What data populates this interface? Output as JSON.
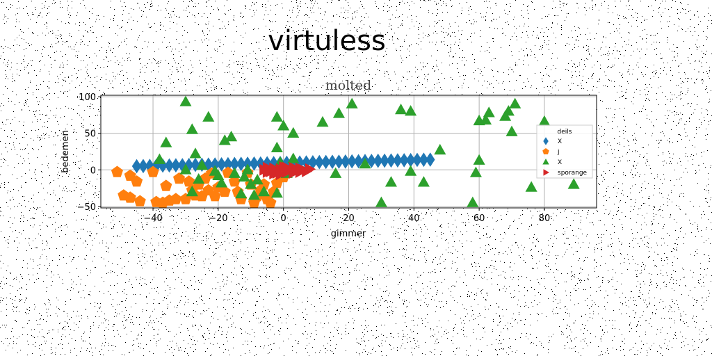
{
  "page_title": "virtuless",
  "chart_data": {
    "type": "scatter",
    "title": "molted",
    "xlabel": "gimmer",
    "ylabel": "bedemen",
    "xlim": [
      -56,
      96
    ],
    "ylim": [
      -52,
      102
    ],
    "xticks": [
      -40,
      -20,
      0,
      20,
      40,
      60,
      80
    ],
    "yticks": [
      -50,
      0,
      50,
      100
    ],
    "grid": true,
    "legend": {
      "title": "deils",
      "placement": "right"
    },
    "series": [
      {
        "name": "X",
        "color": "#1f77b4",
        "marker": "diamond",
        "points": [
          [
            -45,
            5
          ],
          [
            -43,
            5.2
          ],
          [
            -41,
            5.4
          ],
          [
            -39,
            5.6
          ],
          [
            -37,
            5.8
          ],
          [
            -35,
            6
          ],
          [
            -33,
            6.2
          ],
          [
            -31,
            6.4
          ],
          [
            -29,
            6.6
          ],
          [
            -27,
            6.8
          ],
          [
            -25,
            7
          ],
          [
            -23,
            7.2
          ],
          [
            -21,
            7.4
          ],
          [
            -19,
            7.6
          ],
          [
            -17,
            7.8
          ],
          [
            -15,
            8
          ],
          [
            -13,
            8.2
          ],
          [
            -11,
            8.4
          ],
          [
            -9,
            8.6
          ],
          [
            -7,
            8.8
          ],
          [
            -5,
            9
          ],
          [
            -3,
            9.2
          ],
          [
            -1,
            9.4
          ],
          [
            1,
            9.6
          ],
          [
            3,
            9.8
          ],
          [
            5,
            10
          ],
          [
            7,
            10.2
          ],
          [
            9,
            10.4
          ],
          [
            11,
            10.6
          ],
          [
            13,
            10.8
          ],
          [
            15,
            11
          ],
          [
            17,
            11.2
          ],
          [
            19,
            11.4
          ],
          [
            21,
            11.6
          ],
          [
            23,
            11.8
          ],
          [
            25,
            12
          ],
          [
            27,
            12.2
          ],
          [
            29,
            12.4
          ],
          [
            31,
            12.6
          ],
          [
            33,
            12.8
          ],
          [
            35,
            13
          ],
          [
            37,
            13.2
          ],
          [
            39,
            13.4
          ],
          [
            41,
            13.6
          ],
          [
            43,
            13.8
          ],
          [
            45,
            14
          ]
        ]
      },
      {
        "name": "j",
        "color": "#ff7f0e",
        "marker": "pentagon",
        "points": [
          [
            -51,
            -3
          ],
          [
            -47,
            -8
          ],
          [
            -45,
            -16
          ],
          [
            -49,
            -35
          ],
          [
            -47,
            -38
          ],
          [
            -44,
            -43
          ],
          [
            -40,
            -3
          ],
          [
            -39,
            -44
          ],
          [
            -37,
            -45
          ],
          [
            -36,
            -22
          ],
          [
            -35,
            -42
          ],
          [
            -33,
            -40
          ],
          [
            -32,
            -12
          ],
          [
            -30,
            -40
          ],
          [
            -28,
            -28
          ],
          [
            -29,
            -16
          ],
          [
            -27,
            -35
          ],
          [
            -26,
            -20
          ],
          [
            -25,
            -36
          ],
          [
            -24,
            -12
          ],
          [
            -23,
            -28
          ],
          [
            -22,
            -5
          ],
          [
            -21,
            -36
          ],
          [
            -20,
            -24
          ],
          [
            -18,
            -30
          ],
          [
            -17,
            -4
          ],
          [
            -15,
            -16
          ],
          [
            -14,
            -30
          ],
          [
            -13,
            -40
          ],
          [
            -11,
            -4
          ],
          [
            -10,
            -20
          ],
          [
            -9,
            -45
          ],
          [
            -8,
            -36
          ],
          [
            -7,
            -28
          ],
          [
            -6,
            -20
          ],
          [
            -5,
            -40
          ],
          [
            -4,
            -45
          ],
          [
            -3,
            -30
          ],
          [
            -2,
            -18
          ],
          [
            -1,
            -5
          ],
          [
            0,
            -10
          ]
        ]
      },
      {
        "name": "X",
        "color": "#2ca02c",
        "marker": "triangle",
        "points": [
          [
            -30,
            93
          ],
          [
            -28,
            55
          ],
          [
            -27,
            22
          ],
          [
            -26,
            -13
          ],
          [
            -25,
            6
          ],
          [
            -23,
            72
          ],
          [
            -21,
            -2
          ],
          [
            -19,
            -18
          ],
          [
            -18,
            40
          ],
          [
            -16,
            45
          ],
          [
            -15,
            -5
          ],
          [
            -13,
            -33
          ],
          [
            -11,
            0
          ],
          [
            -10,
            -20
          ],
          [
            -9,
            -35
          ],
          [
            -8,
            -14
          ],
          [
            -6,
            -30
          ],
          [
            -36,
            37
          ],
          [
            -38,
            14
          ],
          [
            -30,
            0
          ],
          [
            -28,
            -30
          ],
          [
            -2,
            72
          ],
          [
            0,
            60
          ],
          [
            -2,
            30
          ],
          [
            3,
            50
          ],
          [
            -1,
            10
          ],
          [
            1,
            -5
          ],
          [
            3,
            15
          ],
          [
            12,
            65
          ],
          [
            16,
            -5
          ],
          [
            17,
            77
          ],
          [
            21,
            90
          ],
          [
            25,
            8
          ],
          [
            30,
            -45
          ],
          [
            33,
            -17
          ],
          [
            36,
            82
          ],
          [
            39,
            80
          ],
          [
            39,
            -2
          ],
          [
            43,
            -17
          ],
          [
            48,
            27
          ],
          [
            58,
            -45
          ],
          [
            59,
            -4
          ],
          [
            60,
            13
          ],
          [
            60,
            67
          ],
          [
            62,
            68
          ],
          [
            63,
            78
          ],
          [
            68,
            73
          ],
          [
            69,
            80
          ],
          [
            70,
            52
          ],
          [
            71,
            90
          ],
          [
            76,
            -24
          ],
          [
            80,
            66
          ],
          [
            89,
            -20
          ],
          [
            -2,
            -32
          ],
          [
            -12,
            -10
          ],
          [
            -20,
            -8
          ]
        ]
      },
      {
        "name": "sporange",
        "color": "#d62728",
        "marker": "triangle-right",
        "points": [
          [
            -6,
            0
          ],
          [
            -5,
            3
          ],
          [
            -4,
            -2
          ],
          [
            -3,
            2
          ],
          [
            -2,
            -4
          ],
          [
            -1,
            1
          ],
          [
            0,
            4
          ],
          [
            1,
            -3
          ],
          [
            2,
            0
          ],
          [
            3,
            3
          ],
          [
            4,
            -1
          ],
          [
            5,
            2
          ],
          [
            6,
            0
          ],
          [
            7,
            -2
          ],
          [
            8,
            1
          ],
          [
            -5,
            -3
          ],
          [
            -3,
            -5
          ],
          [
            -1,
            -6
          ],
          [
            1,
            3
          ],
          [
            3,
            -4
          ],
          [
            5,
            -3
          ]
        ]
      }
    ]
  }
}
